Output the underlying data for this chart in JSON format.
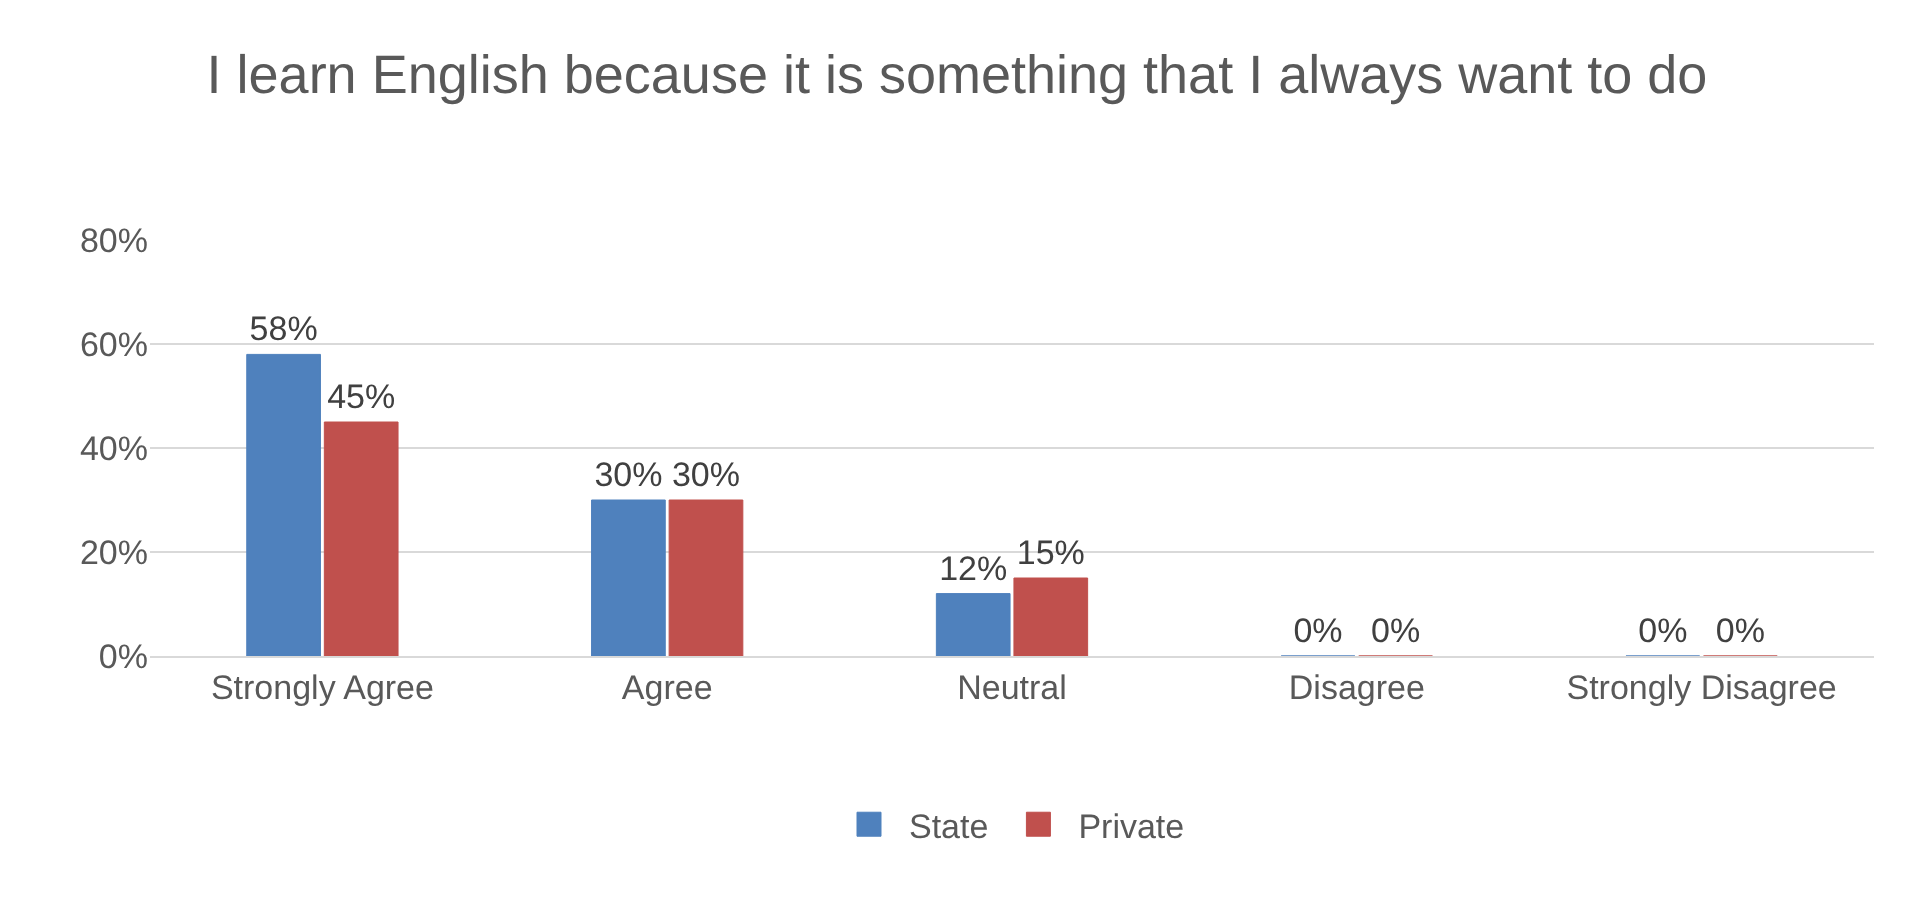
{
  "chart_data": {
    "type": "bar",
    "title": "I learn English because it is something that I always want to do",
    "categories": [
      "Strongly Agree",
      "Agree",
      "Neutral",
      "Disagree",
      "Strongly Disagree"
    ],
    "series": [
      {
        "name": "State",
        "color": "#4f81bd",
        "values": [
          58,
          30,
          12,
          0,
          0
        ],
        "value_labels": [
          "58%",
          "30%",
          "12%",
          "0%",
          "0%"
        ]
      },
      {
        "name": "Private",
        "color": "#c0504d",
        "values": [
          45,
          30,
          15,
          0,
          0
        ],
        "value_labels": [
          "45%",
          "30%",
          "15%",
          "0%",
          "0%"
        ]
      }
    ],
    "ylim": [
      0,
      80
    ],
    "yticks": [
      {
        "value": 0,
        "label": "0%"
      },
      {
        "value": 20,
        "label": "20%"
      },
      {
        "value": 40,
        "label": "40%"
      },
      {
        "value": 60,
        "label": "60%"
      },
      {
        "value": 80,
        "label": "80%"
      }
    ],
    "grid": "y",
    "legend": "bottom"
  }
}
